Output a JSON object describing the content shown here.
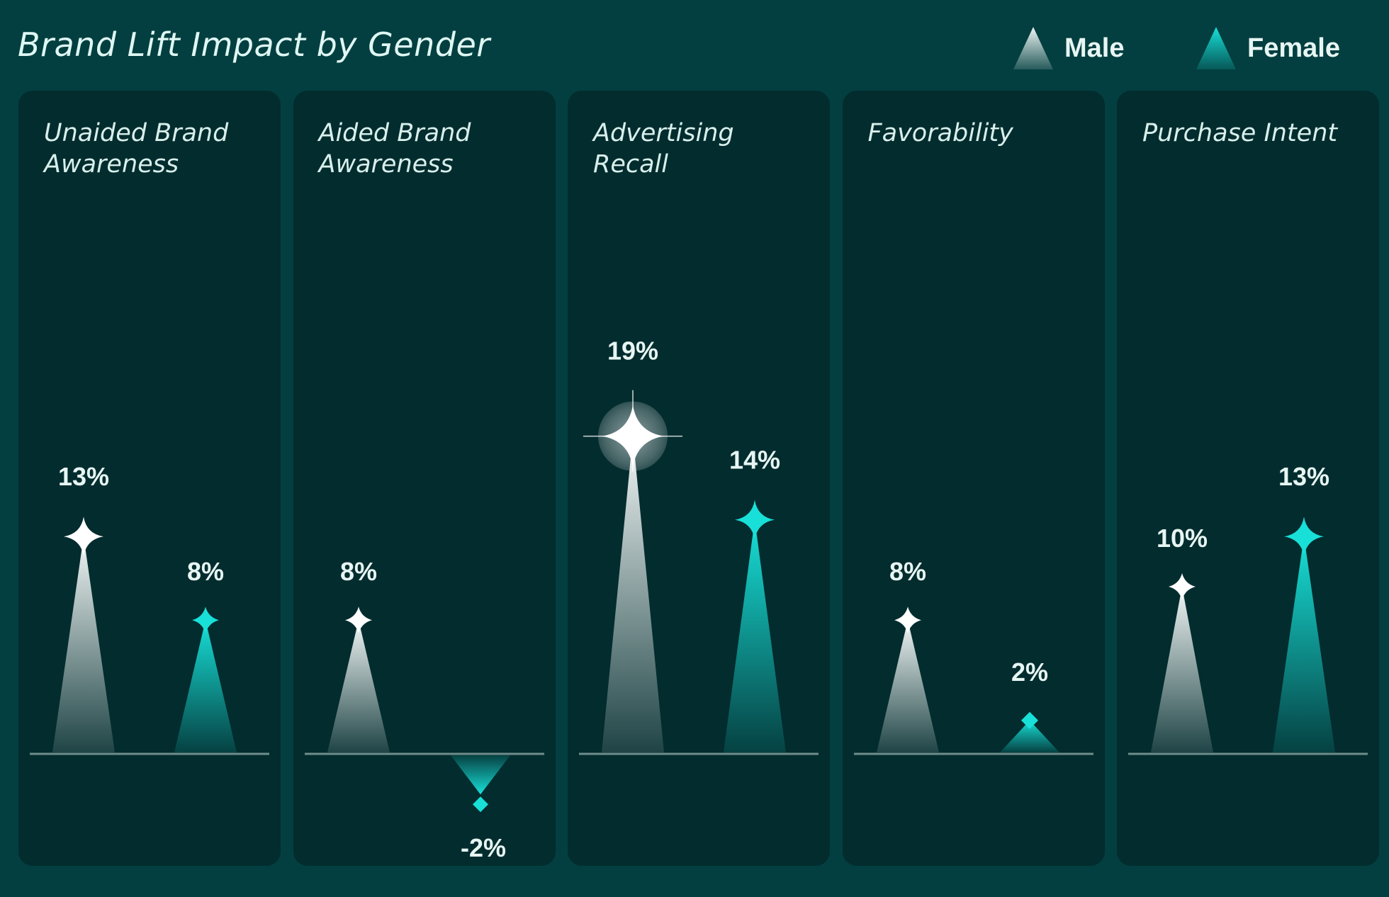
{
  "title": "Brand Lift Impact by Gender",
  "legend": {
    "male": {
      "label": "Male",
      "icon": "triangle-icon",
      "color": "#e9f3f1"
    },
    "female": {
      "label": "Female",
      "icon": "triangle-icon",
      "color": "#18e0d8"
    }
  },
  "chart_data": {
    "type": "bar",
    "title": "Brand Lift Impact by Gender",
    "categories": [
      "Unaided Brand Awareness",
      "Aided Brand Awareness",
      "Advertising Recall",
      "Favorability",
      "Purchase Intent"
    ],
    "series": [
      {
        "name": "Male",
        "values": [
          13,
          8,
          19,
          8,
          10
        ],
        "labels": [
          "13%",
          "8%",
          "19%",
          "8%",
          "10%"
        ],
        "color": "#e9f3f1"
      },
      {
        "name": "Female",
        "values": [
          8,
          -2,
          14,
          2,
          13
        ],
        "labels": [
          "8%",
          "-2%",
          "14%",
          "2%",
          "13%"
        ],
        "color": "#18e0d8"
      }
    ],
    "panel_titles": [
      [
        "Unaided Brand",
        "Awareness"
      ],
      [
        "Aided Brand",
        "Awareness"
      ],
      [
        "Advertising",
        "Recall"
      ],
      [
        "Favorability"
      ],
      [
        "Purchase Intent"
      ]
    ],
    "highlight": {
      "category": "Advertising Recall",
      "series": "Male"
    },
    "ylabel": "",
    "xlabel": "",
    "grid": false
  }
}
